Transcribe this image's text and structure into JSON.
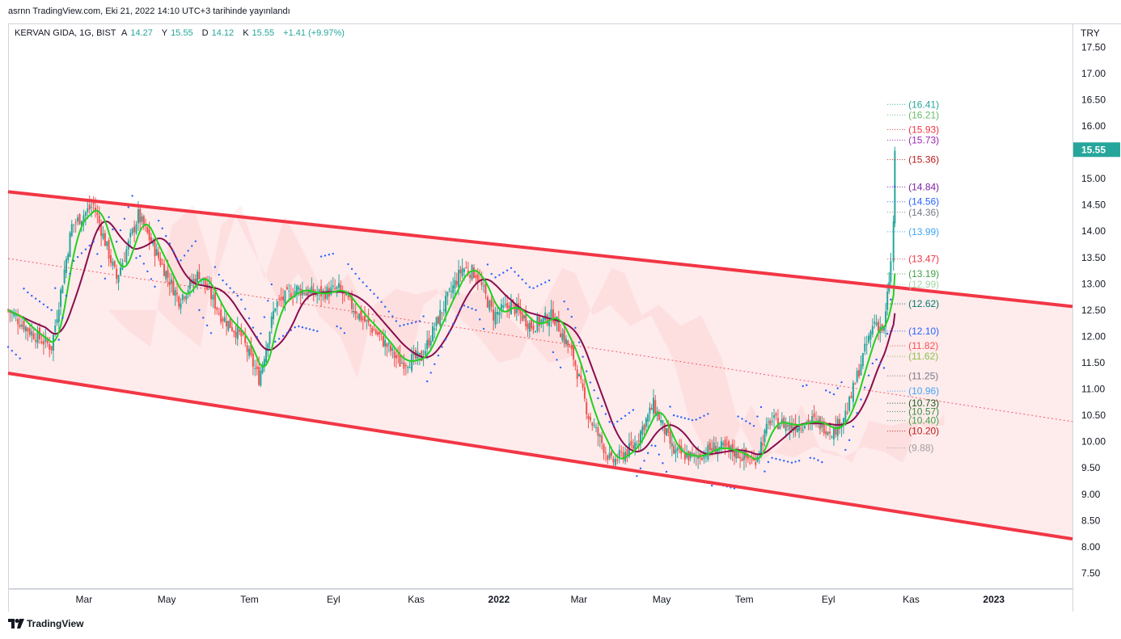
{
  "header": {
    "published": "asrnn TradingView.com, Eki 21, 2022 14:10 UTC+3 tarihinde yayınlandı"
  },
  "legend": {
    "symbol": "KERVAN GIDA, 1G, BIST",
    "o_label": "A",
    "o_value": "14.27",
    "h_label": "Y",
    "h_value": "15.55",
    "l_label": "D",
    "l_value": "14.12",
    "c_label": "K",
    "c_value": "15.55",
    "change": "+1.41 (+9.97%)"
  },
  "currency": "TRY",
  "brand": {
    "name": "TradingView"
  },
  "colors": {
    "up": "#26a69a",
    "down": "#ef5350",
    "channel": "#f23645",
    "fast_ma": "#22d022",
    "slow_ma": "#880e4f",
    "psar": "#2962ff",
    "last_price": "#26a69a"
  },
  "chart_data": {
    "type": "candlestick",
    "x_axis_labels": [
      "Mar",
      "May",
      "Tem",
      "Eyl",
      "Kas",
      "2022",
      "Mar",
      "May",
      "Tem",
      "Eyl",
      "Kas",
      "2023"
    ],
    "x_axis_bold": [
      "2022",
      "2023"
    ],
    "x_range": [
      "2021-01-04",
      "2023-02-28"
    ],
    "x_axis_dates": [
      "2021-03-01",
      "2021-05-01",
      "2021-07-01",
      "2021-09-01",
      "2021-11-01",
      "2022-01-01",
      "2022-03-01",
      "2022-05-01",
      "2022-07-01",
      "2022-09-01",
      "2022-11-01",
      "2023-01-01"
    ],
    "y_axis_ticks": [
      "7.50",
      "8.00",
      "8.50",
      "9.00",
      "9.50",
      "10.00",
      "10.50",
      "11.00",
      "11.50",
      "12.00",
      "12.50",
      "13.00",
      "13.50",
      "14.00",
      "14.50",
      "15.00",
      "15.50",
      "16.00",
      "16.50",
      "17.00",
      "17.50"
    ],
    "ylim": [
      7.2,
      17.95
    ],
    "last_price": "15.55",
    "channel": {
      "upper": [
        [
          "2021-01-04",
          14.75
        ],
        [
          "2023-02-28",
          12.57
        ]
      ],
      "lower": [
        [
          "2021-01-04",
          11.3
        ],
        [
          "2023-02-28",
          8.15
        ]
      ],
      "middle": [
        [
          "2021-01-04",
          13.48
        ],
        [
          "2023-02-28",
          10.38
        ]
      ]
    },
    "series": [
      {
        "name": "",
        "ohlc_points": [
          [
            "2021-01-04",
            11.5,
            12.5
          ],
          [
            "2021-01-20",
            12.4,
            12.1
          ],
          [
            "2021-02-05",
            12.0,
            11.8
          ],
          [
            "2021-02-20",
            11.9,
            14.1
          ],
          [
            "2021-03-08",
            14.2,
            14.5
          ],
          [
            "2021-03-25",
            14.3,
            13.1
          ],
          [
            "2021-04-10",
            13.3,
            14.3
          ],
          [
            "2021-04-25",
            14.2,
            13.5
          ],
          [
            "2021-05-10",
            13.4,
            12.7
          ],
          [
            "2021-05-25",
            12.8,
            13.2
          ],
          [
            "2021-06-10",
            13.1,
            12.4
          ],
          [
            "2021-06-25",
            12.3,
            12.0
          ],
          [
            "2021-07-08",
            12.1,
            11.2
          ],
          [
            "2021-07-20",
            11.3,
            12.6
          ],
          [
            "2021-08-05",
            12.7,
            12.9
          ],
          [
            "2021-08-20",
            12.8,
            12.8
          ],
          [
            "2021-09-05",
            12.9,
            12.9
          ],
          [
            "2021-09-20",
            12.8,
            12.4
          ],
          [
            "2021-10-05",
            12.4,
            12.0
          ],
          [
            "2021-10-20",
            11.9,
            11.5
          ],
          [
            "2021-11-05",
            11.6,
            11.6
          ],
          [
            "2021-11-20",
            11.7,
            12.5
          ],
          [
            "2021-12-05",
            12.6,
            13.3
          ],
          [
            "2021-12-15",
            13.4,
            13.2
          ],
          [
            "2021-12-28",
            13.1,
            12.4
          ],
          [
            "2022-01-10",
            12.3,
            12.6
          ],
          [
            "2022-01-25",
            12.6,
            12.2
          ],
          [
            "2022-02-10",
            12.3,
            12.4
          ],
          [
            "2022-02-25",
            12.3,
            11.6
          ],
          [
            "2022-03-08",
            11.5,
            10.5
          ],
          [
            "2022-03-25",
            10.4,
            9.6
          ],
          [
            "2022-04-10",
            9.7,
            9.9
          ],
          [
            "2022-04-25",
            9.9,
            10.7
          ],
          [
            "2022-05-10",
            10.6,
            9.8
          ],
          [
            "2022-05-25",
            9.8,
            9.7
          ],
          [
            "2022-06-10",
            9.8,
            9.9
          ],
          [
            "2022-06-25",
            9.9,
            9.8
          ],
          [
            "2022-07-08",
            9.8,
            9.6
          ],
          [
            "2022-07-20",
            9.7,
            10.4
          ],
          [
            "2022-08-05",
            10.4,
            10.3
          ],
          [
            "2022-08-20",
            10.3,
            10.4
          ],
          [
            "2022-09-05",
            10.4,
            10.2
          ],
          [
            "2022-09-15",
            10.3,
            10.6
          ],
          [
            "2022-09-25",
            10.6,
            11.5
          ],
          [
            "2022-10-05",
            11.6,
            12.3
          ],
          [
            "2022-10-12",
            12.2,
            12.1
          ],
          [
            "2022-10-17",
            12.2,
            13.4
          ],
          [
            "2022-10-19",
            13.5,
            14.14
          ],
          [
            "2022-10-20",
            14.27,
            15.55
          ]
        ]
      }
    ],
    "right_labels": [
      {
        "text": "(16.41)",
        "value": 16.41,
        "color": "#26a69a"
      },
      {
        "text": "(16.21)",
        "value": 16.21,
        "color": "#66bb6a"
      },
      {
        "text": "(15.93)",
        "value": 15.93,
        "color": "#f23645"
      },
      {
        "text": "(15.73)",
        "value": 15.73,
        "color": "#9c27b0"
      },
      {
        "text": "(15.36)",
        "value": 15.36,
        "color": "#b71c1c"
      },
      {
        "text": "(14.84)",
        "value": 14.84,
        "color": "#7b1fa2"
      },
      {
        "text": "(14.56)",
        "value": 14.56,
        "color": "#2962ff"
      },
      {
        "text": "(14.36)",
        "value": 14.36,
        "color": "#787b86"
      },
      {
        "text": "(13.99)",
        "value": 13.99,
        "color": "#42a5f5"
      },
      {
        "text": "(13.47)",
        "value": 13.47,
        "color": "#f23645"
      },
      {
        "text": "(13.19)",
        "value": 13.19,
        "color": "#43a047"
      },
      {
        "text": "(12.99)",
        "value": 12.99,
        "color": "#a5d6a7"
      },
      {
        "text": "(12.62)",
        "value": 12.62,
        "color": "#00796b"
      },
      {
        "text": "(12.10)",
        "value": 12.1,
        "color": "#2962ff"
      },
      {
        "text": "(11.82)",
        "value": 11.82,
        "color": "#ff5252"
      },
      {
        "text": "(11.62)",
        "value": 11.62,
        "color": "#8bc34a"
      },
      {
        "text": "(11.25)",
        "value": 11.25,
        "color": "#787b86"
      },
      {
        "text": "(10.96)",
        "value": 10.96,
        "color": "#42a5f5"
      },
      {
        "text": "(10.73)",
        "value": 10.73,
        "color": "#1b5e20"
      },
      {
        "text": "(10.57)",
        "value": 10.57,
        "color": "#388e3c"
      },
      {
        "text": "(10.40)",
        "value": 10.4,
        "color": "#43a047"
      },
      {
        "text": "(10.20)",
        "value": 10.2,
        "color": "#b71c1c"
      },
      {
        "text": "(9.88)",
        "value": 9.88,
        "color": "#9e9e9e"
      }
    ]
  }
}
